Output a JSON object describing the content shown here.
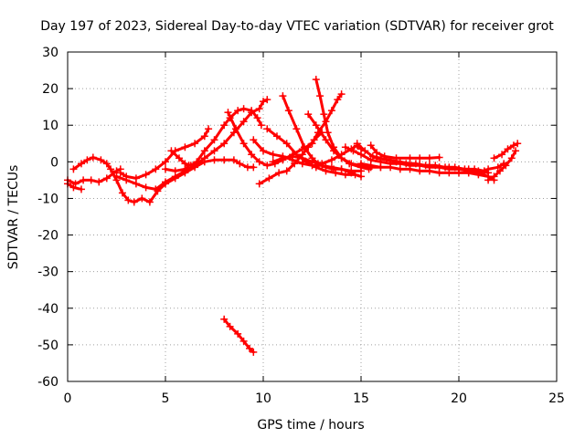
{
  "chart_data": {
    "type": "scatter",
    "title": "Day 197 of 2023, Sidereal Day-to-day VTEC variation (SDTVAR) for receiver grot",
    "xlabel": "GPS time / hours",
    "ylabel": "SDTVAR / TECUs",
    "xlim": [
      0,
      25
    ],
    "ylim": [
      -60,
      30
    ],
    "xticks": [
      0,
      5,
      10,
      15,
      20,
      25
    ],
    "yticks": [
      30,
      20,
      10,
      0,
      -10,
      -20,
      -30,
      -40,
      -50,
      -60
    ],
    "xtick_labels": [
      "0",
      "5",
      "10",
      "15",
      "20",
      "25"
    ],
    "ytick_labels": [
      "30",
      "20",
      "10",
      "0",
      "-10",
      "-20",
      "-30",
      "-40",
      "-50",
      "-60"
    ],
    "grid": true,
    "color": "#ff0000",
    "series": [
      {
        "name": "s1",
        "points": [
          [
            0,
            -5
          ],
          [
            0.4,
            -6
          ],
          [
            0.8,
            -5
          ],
          [
            1.2,
            -5
          ],
          [
            1.6,
            -5.5
          ],
          [
            2,
            -4.5
          ],
          [
            2.5,
            -2.5
          ],
          [
            2.7,
            -2
          ]
        ]
      },
      {
        "name": "s2",
        "points": [
          [
            0,
            -6
          ],
          [
            0.3,
            -7
          ],
          [
            0.7,
            -7.5
          ]
        ]
      },
      {
        "name": "s3",
        "points": [
          [
            0.3,
            -2
          ],
          [
            0.7,
            -0.5
          ],
          [
            1.0,
            0.5
          ],
          [
            1.3,
            1.2
          ],
          [
            1.7,
            0.5
          ],
          [
            2.0,
            -0.5
          ],
          [
            2.2,
            -2
          ],
          [
            2.5,
            -5
          ],
          [
            2.8,
            -8.5
          ],
          [
            3.1,
            -10.5
          ],
          [
            3.4,
            -11
          ],
          [
            3.8,
            -10
          ],
          [
            4.2,
            -11
          ],
          [
            4.6,
            -8
          ],
          [
            5.0,
            -6
          ],
          [
            5.5,
            -4.5
          ],
          [
            6.0,
            -3
          ],
          [
            6.5,
            -1.5
          ],
          [
            7.0,
            0
          ],
          [
            7.5,
            0.5
          ],
          [
            8,
            0.5
          ],
          [
            8.5,
            0.5
          ],
          [
            8.8,
            -0.5
          ],
          [
            9.2,
            -1.5
          ],
          [
            9.5,
            -1.5
          ]
        ]
      },
      {
        "name": "s4",
        "points": [
          [
            2.7,
            -3
          ],
          [
            3.0,
            -4
          ],
          [
            3.5,
            -4.5
          ],
          [
            4.0,
            -3.5
          ],
          [
            4.5,
            -2
          ],
          [
            5.0,
            0
          ],
          [
            5.5,
            3
          ],
          [
            6.0,
            4
          ],
          [
            6.5,
            5
          ],
          [
            7.0,
            7
          ],
          [
            7.2,
            9
          ]
        ]
      },
      {
        "name": "s5",
        "points": [
          [
            2.5,
            -4
          ],
          [
            3.0,
            -5
          ],
          [
            3.5,
            -6
          ],
          [
            4.0,
            -7
          ],
          [
            4.5,
            -7.5
          ],
          [
            5.0,
            -5.5
          ],
          [
            5.5,
            -4
          ],
          [
            6.0,
            -2.5
          ],
          [
            6.5,
            -1
          ],
          [
            7.0,
            1
          ],
          [
            7.5,
            3
          ],
          [
            8.0,
            5
          ],
          [
            8.5,
            8
          ],
          [
            9.0,
            11
          ],
          [
            9.4,
            13.5
          ],
          [
            9.8,
            14.5
          ],
          [
            10.0,
            16.5
          ],
          [
            10.2,
            17
          ]
        ]
      },
      {
        "name": "s6",
        "points": [
          [
            5.3,
            3
          ],
          [
            5.7,
            1
          ],
          [
            6.0,
            -0.5
          ],
          [
            6.3,
            -1
          ],
          [
            6.6,
            0
          ],
          [
            7.0,
            3
          ],
          [
            7.5,
            6
          ],
          [
            8.0,
            10
          ],
          [
            8.3,
            12
          ],
          [
            8.7,
            14
          ],
          [
            9.0,
            14.5
          ],
          [
            9.4,
            14
          ],
          [
            9.7,
            12
          ],
          [
            9.9,
            10
          ]
        ]
      },
      {
        "name": "s7",
        "points": [
          [
            5.0,
            -2
          ],
          [
            5.5,
            -2.5
          ],
          [
            6.0,
            -2
          ],
          [
            6.2,
            -1
          ]
        ]
      },
      {
        "name": "s8",
        "points": [
          [
            8.2,
            13.5
          ],
          [
            8.6,
            9
          ],
          [
            9.0,
            5
          ],
          [
            9.4,
            2
          ],
          [
            9.8,
            0
          ],
          [
            10.2,
            -1
          ],
          [
            10.6,
            -0.5
          ],
          [
            11.0,
            0.5
          ],
          [
            11.5,
            2
          ],
          [
            12.0,
            3.5
          ],
          [
            12.5,
            5
          ],
          [
            12.8,
            8
          ],
          [
            13.2,
            11
          ],
          [
            13.5,
            14
          ],
          [
            13.8,
            17
          ],
          [
            14.0,
            18.5
          ]
        ]
      },
      {
        "name": "s9",
        "points": [
          [
            9.8,
            -6
          ],
          [
            10.3,
            -4.5
          ],
          [
            10.8,
            -3
          ],
          [
            11.2,
            -2.5
          ],
          [
            11.6,
            -0.5
          ],
          [
            12.0,
            2
          ],
          [
            12.3,
            4
          ],
          [
            12.6,
            6
          ],
          [
            13.0,
            8
          ]
        ]
      },
      {
        "name": "s10",
        "points": [
          [
            9.5,
            6
          ],
          [
            10.0,
            3
          ],
          [
            10.5,
            2
          ],
          [
            11.0,
            1.5
          ],
          [
            11.5,
            0.5
          ],
          [
            12,
            -0.5
          ],
          [
            12.5,
            -1
          ],
          [
            13,
            -1
          ],
          [
            13.5,
            -1.5
          ],
          [
            14,
            -2
          ],
          [
            14.5,
            -2.5
          ],
          [
            15,
            -2.5
          ]
        ]
      },
      {
        "name": "s11",
        "points": [
          [
            8.0,
            -43
          ],
          [
            8.3,
            -45
          ],
          [
            8.7,
            -47
          ],
          [
            9.0,
            -49
          ],
          [
            9.3,
            -51
          ],
          [
            9.5,
            -52
          ]
        ]
      },
      {
        "name": "s12",
        "points": [
          [
            11.0,
            18
          ],
          [
            11.3,
            14
          ],
          [
            11.7,
            9
          ],
          [
            12.1,
            4
          ],
          [
            12.5,
            1
          ],
          [
            12.8,
            -0.5
          ],
          [
            13.2,
            -1.5
          ],
          [
            13.6,
            -2
          ],
          [
            14.0,
            -2
          ],
          [
            14.5,
            -3
          ]
        ]
      },
      {
        "name": "s13",
        "points": [
          [
            12.7,
            22.5
          ],
          [
            12.9,
            18
          ],
          [
            13.1,
            13
          ],
          [
            13.3,
            8
          ],
          [
            13.6,
            4
          ],
          [
            14.0,
            1
          ],
          [
            14.4,
            -0.5
          ],
          [
            15.0,
            -1.5
          ],
          [
            15.4,
            -2
          ]
        ]
      },
      {
        "name": "s14",
        "points": [
          [
            12.3,
            13
          ],
          [
            12.7,
            10
          ],
          [
            13.2,
            6
          ],
          [
            13.6,
            3
          ],
          [
            14.0,
            1
          ],
          [
            14.5,
            -0.5
          ],
          [
            15.0,
            -1
          ],
          [
            15.5,
            -1.5
          ],
          [
            16,
            -1.5
          ]
        ]
      },
      {
        "name": "s15",
        "points": [
          [
            10.2,
            9
          ],
          [
            10.7,
            7
          ],
          [
            11.2,
            5
          ],
          [
            11.7,
            2
          ],
          [
            12.2,
            0
          ],
          [
            12.7,
            -1.5
          ],
          [
            13.2,
            -2.5
          ],
          [
            13.7,
            -3
          ],
          [
            14.2,
            -3.5
          ],
          [
            14.7,
            -3.5
          ],
          [
            15.0,
            -4
          ]
        ]
      },
      {
        "name": "s16",
        "points": [
          [
            10.5,
            0
          ],
          [
            11,
            1
          ],
          [
            11.5,
            1.5
          ],
          [
            12,
            1
          ],
          [
            12.5,
            0
          ],
          [
            13,
            -0.5
          ],
          [
            13.5,
            0.5
          ],
          [
            14,
            2
          ],
          [
            14.5,
            3.5
          ],
          [
            14.8,
            4.5
          ],
          [
            15,
            3.5
          ]
        ]
      },
      {
        "name": "s17",
        "points": [
          [
            14.2,
            4
          ],
          [
            14.6,
            3
          ],
          [
            15.0,
            2
          ],
          [
            15.5,
            0.5
          ],
          [
            16,
            0
          ],
          [
            16.5,
            -0.5
          ],
          [
            17,
            -0.5
          ],
          [
            17.5,
            -1
          ],
          [
            18,
            -1
          ],
          [
            18.5,
            -1.5
          ],
          [
            19,
            -1.5
          ],
          [
            19.5,
            -1.5
          ],
          [
            20,
            -2
          ],
          [
            20.5,
            -2
          ],
          [
            21,
            -2.5
          ],
          [
            21.5,
            -3
          ]
        ]
      },
      {
        "name": "s18",
        "points": [
          [
            14.8,
            5
          ],
          [
            15.2,
            3
          ],
          [
            15.6,
            1.5
          ],
          [
            16,
            1
          ],
          [
            16.5,
            0.5
          ],
          [
            17,
            0
          ],
          [
            17.5,
            -0.5
          ],
          [
            18,
            -1
          ],
          [
            18.5,
            -1
          ],
          [
            19,
            -1.5
          ],
          [
            19.5,
            -2
          ],
          [
            20,
            -2
          ],
          [
            20.5,
            -2.5
          ],
          [
            21,
            -3
          ],
          [
            21.5,
            -4
          ],
          [
            21.8,
            -5
          ]
        ]
      },
      {
        "name": "s19",
        "points": [
          [
            15.5,
            4.5
          ],
          [
            15.8,
            2.5
          ],
          [
            16.2,
            1.5
          ],
          [
            16.8,
            1
          ],
          [
            17.5,
            1
          ],
          [
            18.0,
            1
          ],
          [
            18.5,
            1
          ],
          [
            19.0,
            1.2
          ]
        ]
      },
      {
        "name": "s20",
        "points": [
          [
            15.0,
            -0.5
          ],
          [
            15.5,
            -1
          ],
          [
            16,
            -1.5
          ],
          [
            16.5,
            -1.5
          ],
          [
            17,
            -2
          ],
          [
            17.5,
            -2
          ],
          [
            18,
            -2.5
          ],
          [
            18.5,
            -2.5
          ],
          [
            19,
            -3
          ],
          [
            19.5,
            -3
          ],
          [
            20,
            -3
          ],
          [
            20.5,
            -3
          ],
          [
            21,
            -3.5
          ],
          [
            21.5,
            -4
          ]
        ]
      },
      {
        "name": "s21",
        "points": [
          [
            15.8,
            1
          ],
          [
            16.3,
            0.5
          ],
          [
            16.8,
            0
          ],
          [
            17.3,
            -0.5
          ],
          [
            17.8,
            -0.5
          ],
          [
            18.3,
            -1
          ],
          [
            18.8,
            -1
          ],
          [
            19.3,
            -1.5
          ],
          [
            19.8,
            -1.5
          ],
          [
            20.3,
            -2
          ],
          [
            20.8,
            -2
          ],
          [
            21.3,
            -2.5
          ]
        ]
      },
      {
        "name": "s22",
        "points": [
          [
            21.5,
            -5
          ],
          [
            21.8,
            -4
          ],
          [
            22.1,
            -2.5
          ],
          [
            22.4,
            -1
          ],
          [
            22.7,
            1
          ],
          [
            22.9,
            3
          ]
        ]
      },
      {
        "name": "s23",
        "points": [
          [
            21.8,
            1
          ],
          [
            22.2,
            2
          ],
          [
            22.5,
            3.5
          ],
          [
            22.8,
            4.5
          ],
          [
            23.0,
            5
          ]
        ]
      },
      {
        "name": "s24",
        "points": [
          [
            20.5,
            -3
          ],
          [
            21,
            -3
          ],
          [
            21.5,
            -2
          ],
          [
            22,
            -1.5
          ],
          [
            22.3,
            -0.5
          ]
        ]
      }
    ]
  }
}
